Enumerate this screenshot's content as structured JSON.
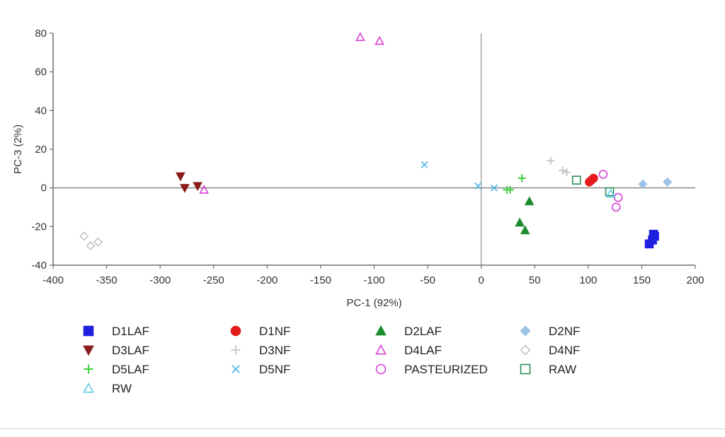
{
  "chart_data": {
    "type": "scatter",
    "xlabel": "PC-1 (92%)",
    "ylabel": "PC-3 (2%)",
    "xlim": [
      -400,
      200
    ],
    "ylim": [
      -40,
      80
    ],
    "xticks": [
      -400,
      -350,
      -300,
      -250,
      -200,
      -150,
      -100,
      -50,
      0,
      50,
      100,
      150,
      200
    ],
    "yticks": [
      -40,
      -20,
      0,
      20,
      40,
      60,
      80
    ],
    "xtick_labels": [
      "-400",
      "-350",
      "-300",
      "-250",
      "-200",
      "-150",
      "-100",
      "-50",
      "0",
      "50",
      "100",
      "150",
      "200"
    ],
    "ytick_labels": [
      "-40",
      "-20",
      "0",
      "20",
      "40",
      "60",
      "80"
    ],
    "grid": false,
    "zero_lines": true,
    "legend_position": "bottom",
    "series": [
      {
        "name": "D1LAF",
        "marker": "square",
        "filled": true,
        "color": "#1f1fe0",
        "points": [
          [
            157,
            -29
          ],
          [
            160,
            -27
          ],
          [
            162,
            -25
          ],
          [
            161,
            -24
          ]
        ]
      },
      {
        "name": "D1NF",
        "marker": "circle",
        "filled": true,
        "color": "#e41a1c",
        "points": [
          [
            101,
            3
          ],
          [
            103,
            4
          ],
          [
            105,
            5
          ]
        ]
      },
      {
        "name": "D2LAF",
        "marker": "triangle-up",
        "filled": true,
        "color": "#1a8c2e",
        "points": [
          [
            36,
            -18
          ],
          [
            41,
            -22
          ],
          [
            45,
            -7
          ]
        ]
      },
      {
        "name": "D2NF",
        "marker": "diamond",
        "filled": true,
        "color": "#9ec3e6",
        "points": [
          [
            151,
            2
          ],
          [
            174,
            3
          ]
        ]
      },
      {
        "name": "D3LAF",
        "marker": "triangle-down",
        "filled": true,
        "color": "#8b1a1a",
        "points": [
          [
            -281,
            6
          ],
          [
            -277,
            0
          ],
          [
            -265,
            1
          ]
        ]
      },
      {
        "name": "D3NF",
        "marker": "plus",
        "filled": true,
        "color": "#c8c8c8",
        "points": [
          [
            65,
            14
          ],
          [
            76,
            9
          ],
          [
            80,
            8
          ]
        ]
      },
      {
        "name": "D4LAF",
        "marker": "triangle-up",
        "filled": false,
        "color": "#d63fd6",
        "points": [
          [
            -113,
            78
          ],
          [
            -95,
            76
          ],
          [
            -259,
            -1
          ]
        ]
      },
      {
        "name": "D4NF",
        "marker": "diamond",
        "filled": false,
        "color": "#c4c4c4",
        "points": [
          [
            -371,
            -25
          ],
          [
            -365,
            -30
          ],
          [
            -358,
            -28
          ]
        ]
      },
      {
        "name": "D5LAF",
        "marker": "plus",
        "filled": false,
        "color": "#3bd13b",
        "points": [
          [
            24,
            -1
          ],
          [
            27,
            -1
          ],
          [
            38,
            5
          ]
        ]
      },
      {
        "name": "D5NF",
        "marker": "cross",
        "filled": false,
        "color": "#5cb8e6",
        "points": [
          [
            -53,
            12
          ],
          [
            -3,
            1
          ],
          [
            12,
            0
          ]
        ]
      },
      {
        "name": "PASTEURIZED",
        "marker": "circle",
        "filled": false,
        "color": "#d63fd6",
        "points": [
          [
            114,
            7
          ],
          [
            128,
            -5
          ],
          [
            126,
            -10
          ]
        ]
      },
      {
        "name": "RAW",
        "marker": "square",
        "filled": false,
        "color": "#2e8b57",
        "points": [
          [
            89,
            4
          ],
          [
            120,
            -2
          ]
        ]
      },
      {
        "name": "RW",
        "marker": "triangle-up",
        "filled": false,
        "color": "#5cc8e6",
        "points": [
          [
            121,
            -3
          ]
        ]
      }
    ],
    "legend": [
      [
        "D1LAF",
        "D1NF",
        "D2LAF",
        "D2NF"
      ],
      [
        "D3LAF",
        "D3NF",
        "D4LAF",
        "D4NF"
      ],
      [
        "D5LAF",
        "D5NF",
        "PASTEURIZED",
        "RAW"
      ],
      [
        "RW"
      ]
    ]
  }
}
